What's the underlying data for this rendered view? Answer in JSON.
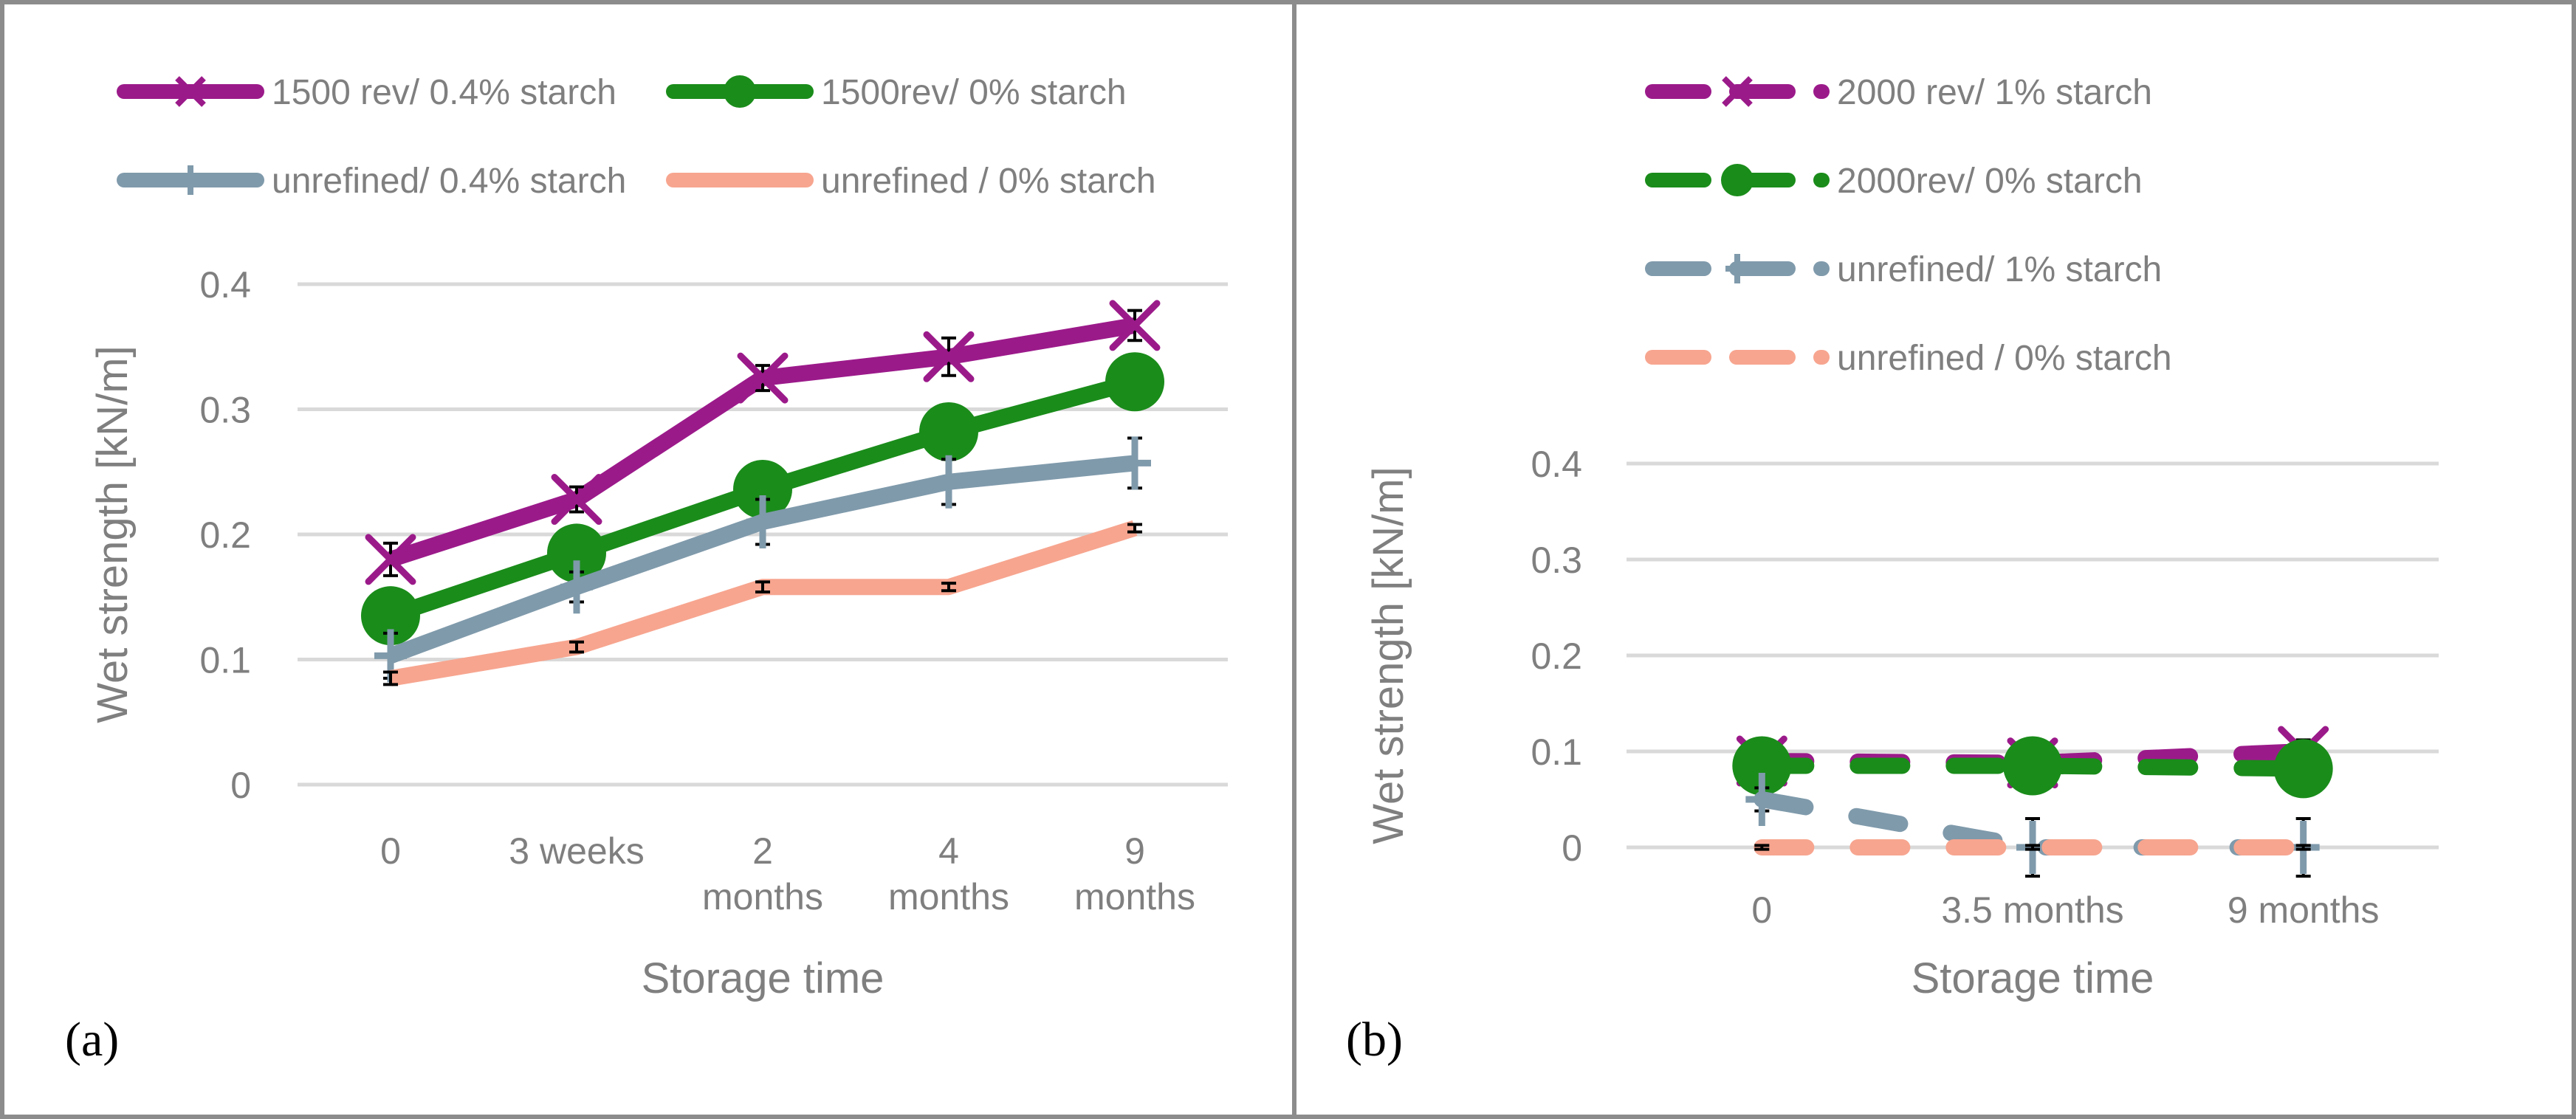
{
  "chart_data": [
    {
      "type": "line",
      "panel_label": "(a)",
      "xlabel": "Storage time",
      "ylabel": "Wet strength [kN/m]",
      "ylim": [
        0,
        0.4
      ],
      "yticks": [
        "0",
        "0.1",
        "0.2",
        "0.3",
        "0.4"
      ],
      "categories": [
        [
          "0"
        ],
        [
          "3 weeks"
        ],
        [
          "2",
          "months"
        ],
        [
          "4",
          "months"
        ],
        [
          "9",
          "months"
        ]
      ],
      "legend_position": "top",
      "series": [
        {
          "name": "1500 rev/ 0.4% starch",
          "color": "#9b1a8a",
          "marker": "x",
          "dashed": false,
          "values": [
            0.18,
            0.228,
            0.325,
            0.342,
            0.367
          ],
          "errors": [
            0.013,
            0.01,
            0.01,
            0.015,
            0.012
          ]
        },
        {
          "name": "1500rev/ 0% starch",
          "color": "#1a8c1a",
          "marker": "circle",
          "dashed": false,
          "values": [
            0.135,
            0.185,
            0.236,
            0.282,
            0.322
          ],
          "errors": [
            0.01,
            0.01,
            0.012,
            0.01,
            0.01
          ]
        },
        {
          "name": "unrefined/ 0.4% starch",
          "color": "#7f9aab",
          "marker": "plus",
          "dashed": false,
          "values": [
            0.103,
            0.158,
            0.21,
            0.242,
            0.257
          ],
          "errors": [
            0.018,
            0.012,
            0.018,
            0.018,
            0.02
          ]
        },
        {
          "name": "unrefined / 0% starch",
          "color": "#f7a58f",
          "marker": "none",
          "dashed": false,
          "values": [
            0.085,
            0.11,
            0.158,
            0.158,
            0.205
          ],
          "errors": [
            0.005,
            0.004,
            0.004,
            0.003,
            0.003
          ]
        }
      ]
    },
    {
      "type": "line",
      "panel_label": "(b)",
      "xlabel": "Storage time",
      "ylabel": "Wet strength [kN/m]",
      "ylim": [
        0,
        0.4
      ],
      "yticks": [
        "0",
        "0.1",
        "0.2",
        "0.3",
        "0.4"
      ],
      "categories": [
        [
          "0"
        ],
        [
          "3.5 months"
        ],
        [
          "9 months"
        ]
      ],
      "legend_position": "top",
      "series": [
        {
          "name": "2000 rev/ 1% starch",
          "color": "#9b1a8a",
          "marker": "x",
          "dashed": true,
          "values": [
            0.09,
            0.088,
            0.1
          ],
          "errors": [
            0.012,
            0.01,
            0.012
          ]
        },
        {
          "name": "2000rev/ 0% starch",
          "color": "#1a8c1a",
          "marker": "circle",
          "dashed": true,
          "values": [
            0.085,
            0.085,
            0.082
          ],
          "errors": [
            0.01,
            0.01,
            0.01
          ]
        },
        {
          "name": "unrefined/ 1% starch",
          "color": "#7f9aab",
          "marker": "plus",
          "dashed": true,
          "values": [
            0.05,
            0.0,
            0.0
          ],
          "errors": [
            0.012,
            0.03,
            0.03
          ]
        },
        {
          "name": "unrefined / 0% starch",
          "color": "#f7a58f",
          "marker": "none",
          "dashed": true,
          "values": [
            0.0,
            0.0,
            0.0
          ],
          "errors": [
            0.002,
            0.002,
            0.002
          ]
        }
      ]
    }
  ]
}
